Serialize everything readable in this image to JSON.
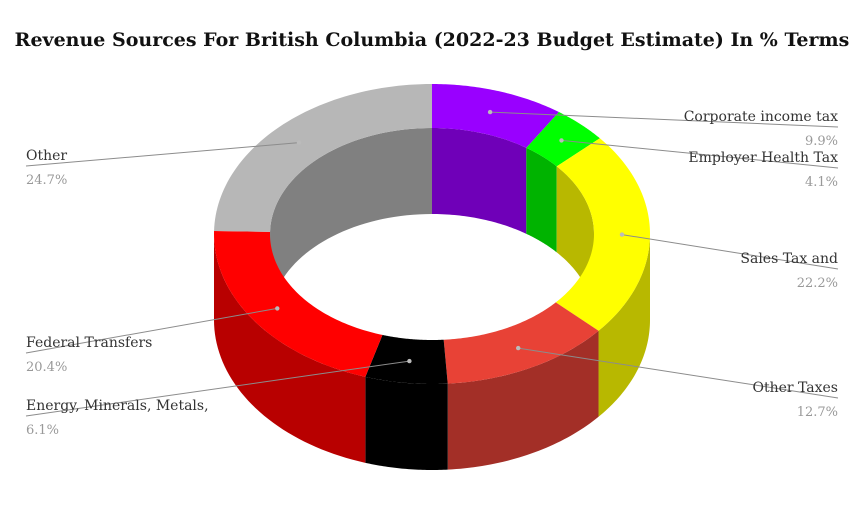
{
  "chart_data": {
    "type": "pie",
    "subtype": "3d-donut",
    "title": "Revenue Sources For British Columbia (2022-23 Budget Estimate) In % Terms",
    "unit": "%",
    "slices": [
      {
        "name": "Corporate income tax",
        "value": 9.9,
        "value_label": "9.9%",
        "color": "#9900ff",
        "side_color": "#6f00b8"
      },
      {
        "name": "Employer Health Tax",
        "value": 4.1,
        "value_label": "4.1%",
        "color": "#00ff00",
        "side_color": "#00b300"
      },
      {
        "name": "Sales Tax and",
        "value": 22.2,
        "value_label": "22.2%",
        "color": "#ffff00",
        "side_color": "#b8b800"
      },
      {
        "name": "Other Taxes",
        "value": 12.7,
        "value_label": "12.7%",
        "color": "#e84236",
        "side_color": "#a32f27"
      },
      {
        "name": "Energy, Minerals, Metals,",
        "value": 6.1,
        "value_label": "6.1%",
        "color": "#000000",
        "side_color": "#000000"
      },
      {
        "name": "Federal Transfers",
        "value": 20.4,
        "value_label": "20.4%",
        "color": "#ff0000",
        "side_color": "#b80000"
      },
      {
        "name": "Other",
        "value": 24.7,
        "value_label": "24.7%",
        "color": "#b7b7b7",
        "side_color": "#808080"
      }
    ],
    "legend": "none"
  }
}
